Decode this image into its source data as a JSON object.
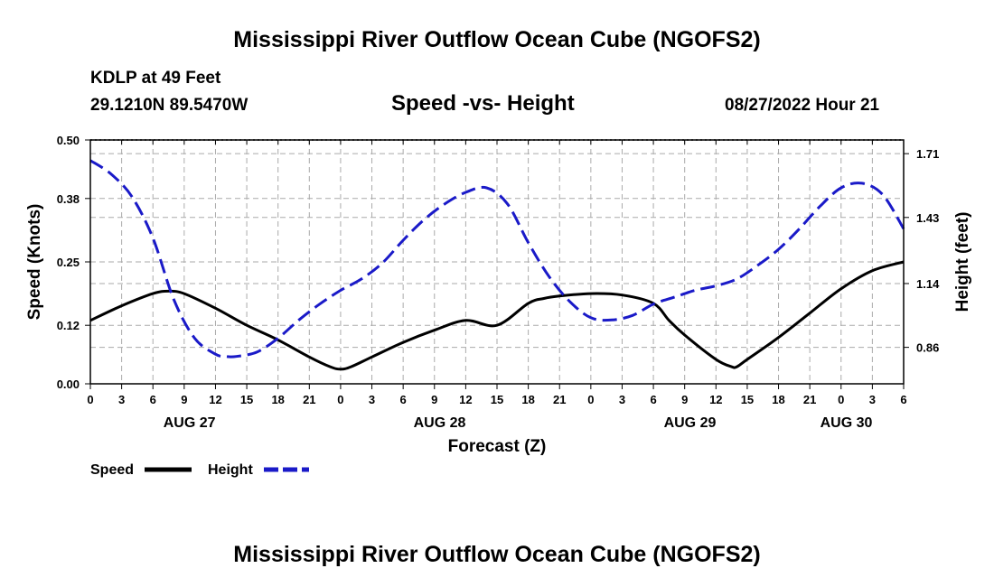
{
  "page_title": "Mississippi River Outflow Ocean Cube (NGOFS2)",
  "footer_title": "Mississippi River Outflow Ocean Cube (NGOFS2)",
  "station": {
    "name": "KDLP at 49 Feet",
    "coords": "29.1210N  89.5470W"
  },
  "datetime": "08/27/2022 Hour 21",
  "colors": {
    "speed": "#000000",
    "height": "#1a1ac8",
    "grid": "#aaaaaa"
  },
  "chart_data": {
    "type": "line",
    "title": "Speed -vs- Height",
    "xlabel": "Forecast (Z)",
    "ylabel": "Speed (Knots)",
    "ylabel_right": "Height (feet)",
    "x_unit": "hours from Aug 27 00Z",
    "xlim": [
      0,
      78
    ],
    "ylim": [
      0,
      0.5
    ],
    "ylim_right": [
      0.7,
      1.77
    ],
    "x_tick_values": [
      0,
      3,
      6,
      9,
      12,
      15,
      18,
      21,
      24,
      27,
      30,
      33,
      36,
      39,
      42,
      45,
      48,
      51,
      54,
      57,
      60,
      63,
      66,
      69,
      72,
      75,
      78
    ],
    "x_tick_labels": [
      "0",
      "3",
      "6",
      "9",
      "12",
      "15",
      "18",
      "21",
      "0",
      "3",
      "6",
      "9",
      "12",
      "15",
      "18",
      "21",
      "0",
      "3",
      "6",
      "9",
      "12",
      "15",
      "18",
      "21",
      "0",
      "3",
      "6"
    ],
    "date_labels": [
      {
        "text": "AUG 27",
        "x": 9.5
      },
      {
        "text": "AUG 28",
        "x": 33.5
      },
      {
        "text": "AUG 29",
        "x": 57.5
      },
      {
        "text": "AUG 30",
        "x": 72.5
      }
    ],
    "y_ticks_left": [
      0.0,
      0.12,
      0.25,
      0.38,
      0.5
    ],
    "y_tick_labels_left": [
      "0.00",
      "0.12",
      "0.25",
      "0.38",
      "0.50"
    ],
    "y_ticks_right": [
      0.86,
      1.14,
      1.43,
      1.71
    ],
    "y_tick_labels_right": [
      "0.86",
      "1.14",
      "1.43",
      "1.71"
    ],
    "series": [
      {
        "name": "Speed",
        "axis": "left",
        "style": "solid",
        "x": [
          0,
          3,
          6,
          7.5,
          9,
          12,
          15,
          18,
          21,
          23,
          24,
          25,
          27,
          30,
          33,
          36,
          39,
          42,
          43.5,
          45,
          48,
          51,
          54,
          55.5,
          57,
          60,
          61.5,
          62,
          63,
          66,
          69,
          72,
          75,
          78
        ],
        "values": [
          0.13,
          0.16,
          0.185,
          0.19,
          0.185,
          0.155,
          0.12,
          0.09,
          0.055,
          0.035,
          0.03,
          0.035,
          0.055,
          0.085,
          0.11,
          0.13,
          0.12,
          0.165,
          0.175,
          0.18,
          0.185,
          0.182,
          0.165,
          0.13,
          0.1,
          0.05,
          0.035,
          0.035,
          0.05,
          0.095,
          0.145,
          0.195,
          0.232,
          0.25
        ]
      },
      {
        "name": "Height",
        "axis": "right",
        "style": "dashed",
        "x": [
          0,
          2,
          4,
          6,
          8,
          10,
          12,
          13,
          14,
          16,
          18,
          20,
          22,
          24,
          26,
          28,
          30,
          32,
          34,
          36,
          38,
          40,
          42,
          44,
          46,
          48,
          50,
          52,
          54,
          56,
          58,
          60,
          62,
          64,
          66,
          68,
          70,
          72,
          74,
          76,
          78
        ],
        "values": [
          1.68,
          1.62,
          1.52,
          1.34,
          1.07,
          0.9,
          0.83,
          0.82,
          0.82,
          0.84,
          0.9,
          0.98,
          1.05,
          1.11,
          1.16,
          1.23,
          1.33,
          1.42,
          1.49,
          1.54,
          1.56,
          1.49,
          1.32,
          1.17,
          1.06,
          0.99,
          0.98,
          1.0,
          1.05,
          1.08,
          1.11,
          1.13,
          1.16,
          1.22,
          1.29,
          1.38,
          1.48,
          1.56,
          1.58,
          1.53,
          1.38
        ]
      }
    ],
    "legend": [
      {
        "label": "Speed",
        "style": "solid"
      },
      {
        "label": "Height",
        "style": "dashed"
      }
    ],
    "legend_position": "bottom-left",
    "grid": true
  }
}
